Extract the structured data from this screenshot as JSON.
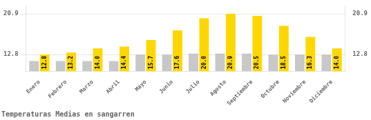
{
  "chart_data": {
    "type": "bar",
    "title": "Temperaturas Medias en sangarren",
    "categories": [
      "Enero",
      "Febrero",
      "Marzo",
      "Abril",
      "Mayo",
      "Junio",
      "Julio",
      "Agosto",
      "Septiembre",
      "Octubre",
      "Noviembre",
      "Diciembre"
    ],
    "series": [
      {
        "color": "#C8C8C8",
        "values": [
          11.5,
          11.5,
          11.5,
          11.5,
          12.8,
          12.8,
          13.0,
          13.0,
          13.0,
          12.8,
          12.8,
          12.8
        ]
      },
      {
        "color": "#FFD700",
        "values": [
          12.8,
          13.2,
          14.0,
          14.4,
          15.7,
          17.6,
          20.0,
          20.9,
          20.5,
          18.5,
          16.3,
          14.0
        ],
        "data_labels": true,
        "value_labels": [
          "12.8",
          "13.2",
          "14.0",
          "14.4",
          "15.7",
          "17.6",
          "20.0",
          "20.9",
          "20.5",
          "18.5",
          "16.3",
          "14.0"
        ]
      }
    ],
    "ylim": [
      9.5,
      22.5
    ],
    "yticks": [
      12.8,
      20.9
    ],
    "y2lim": [
      9.5,
      22.5
    ],
    "y2ticks": [
      12.8,
      20.9
    ],
    "grid": true
  }
}
